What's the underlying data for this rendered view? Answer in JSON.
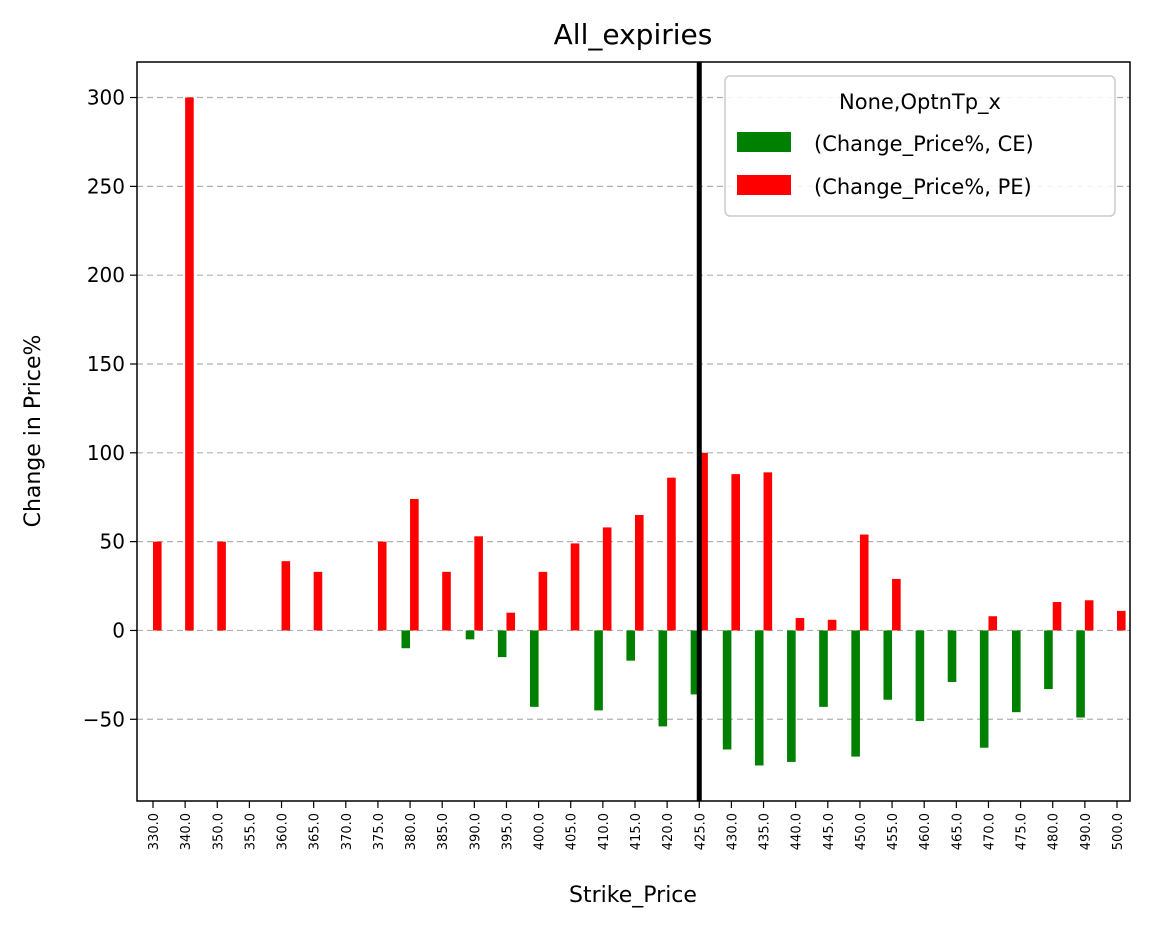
{
  "chart_data": {
    "type": "bar",
    "title": "All_expiries",
    "xlabel": "Strike_Price",
    "ylabel": "Change in Price%",
    "ylim": [
      -96,
      320
    ],
    "yticks": [
      -50,
      0,
      50,
      100,
      150,
      200,
      250,
      300
    ],
    "ytick_labels": [
      "−50",
      "0",
      "50",
      "100",
      "150",
      "200",
      "250",
      "300"
    ],
    "grid": "y-dashed",
    "legend_position": "top-right",
    "legend_title": "None,OptnTp_x",
    "categories": [
      "330.0",
      "340.0",
      "350.0",
      "355.0",
      "360.0",
      "365.0",
      "370.0",
      "375.0",
      "380.0",
      "385.0",
      "390.0",
      "395.0",
      "400.0",
      "405.0",
      "410.0",
      "415.0",
      "420.0",
      "425.0",
      "430.0",
      "435.0",
      "440.0",
      "445.0",
      "450.0",
      "455.0",
      "460.0",
      "465.0",
      "470.0",
      "475.0",
      "480.0",
      "490.0",
      "500.0"
    ],
    "series": [
      {
        "name": "(Change_Price%, CE)",
        "color": "#008000",
        "values": [
          null,
          null,
          null,
          null,
          null,
          null,
          null,
          null,
          -10,
          null,
          -5,
          -15,
          -43,
          null,
          -45,
          -17,
          -54,
          -36,
          -67,
          -76,
          -74,
          -43,
          -71,
          -39,
          -51,
          -29,
          -66,
          -46,
          -33,
          -49,
          null
        ]
      },
      {
        "name": "(Change_Price%, PE)",
        "color": "#ff0000",
        "values": [
          50,
          300,
          50,
          null,
          39,
          33,
          null,
          50,
          74,
          33,
          53,
          10,
          33,
          49,
          58,
          65,
          86,
          100,
          88,
          89,
          7,
          6,
          54,
          29,
          null,
          null,
          8,
          null,
          16,
          17,
          11
        ]
      }
    ],
    "vertical_line": {
      "x": "425.0",
      "color": "#000000"
    }
  }
}
